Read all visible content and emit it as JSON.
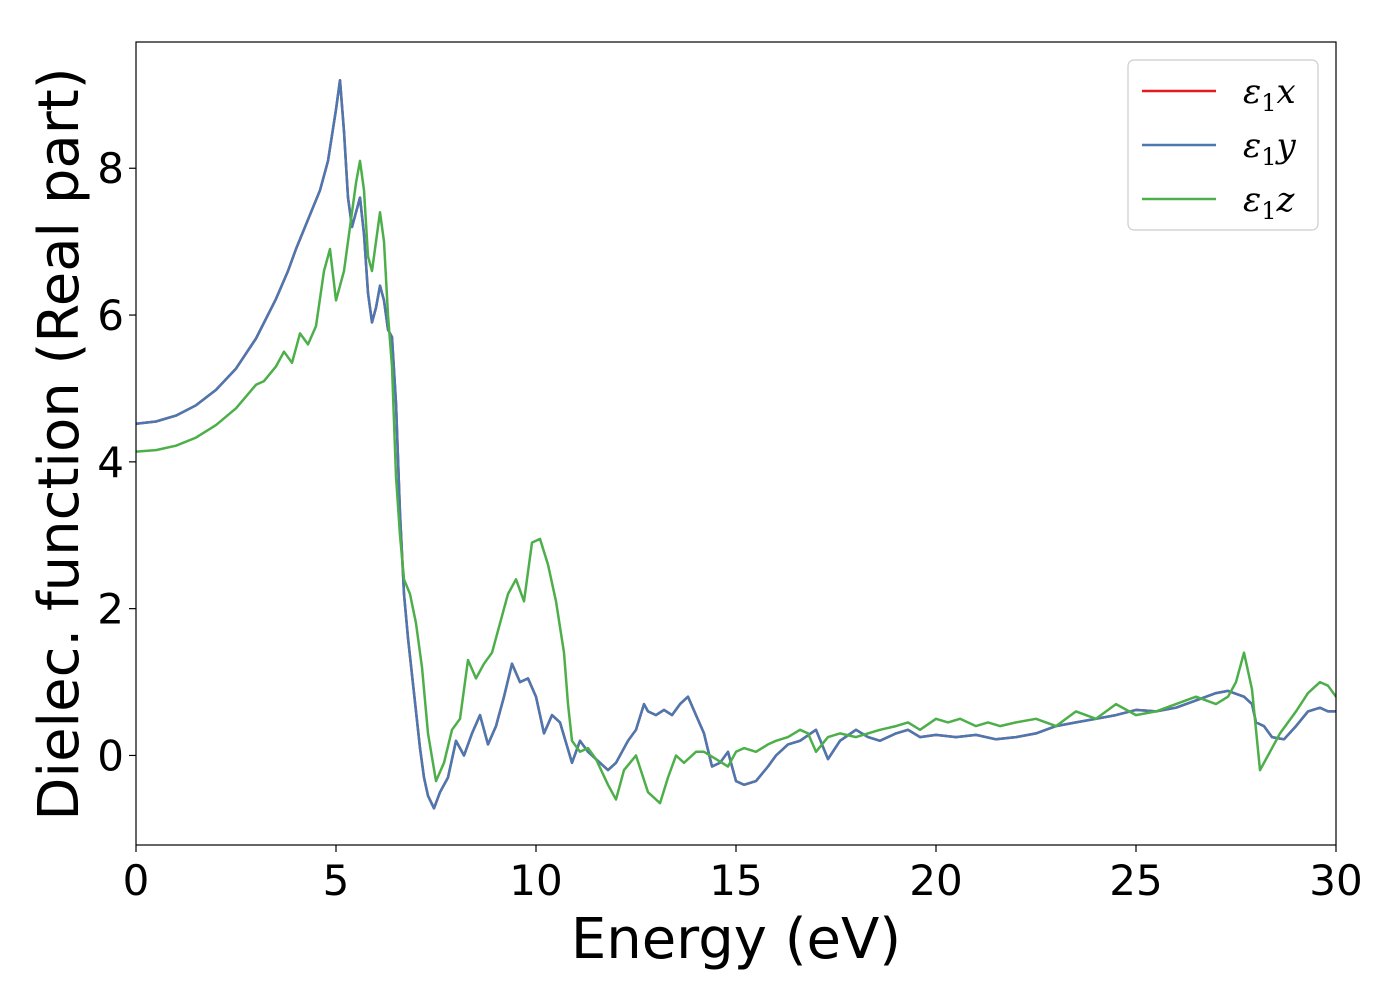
{
  "chart_data": {
    "type": "line",
    "title": "",
    "xlabel": "Energy (eV)",
    "ylabel": "Dielec. function (Real part)",
    "xlim": [
      0,
      30
    ],
    "ylim": [
      -1.22,
      9.72
    ],
    "xticks": [
      0,
      5,
      10,
      15,
      20,
      25,
      30
    ],
    "yticks": [
      0,
      2,
      4,
      6,
      8
    ],
    "grid": false,
    "legend_position": "top-right",
    "series": [
      {
        "name": "ε1x",
        "legend_symbol": "ε",
        "legend_subscript": "1",
        "legend_suffix": "x",
        "color": "#e41a1c",
        "x": [
          0,
          0.5,
          1,
          1.5,
          2,
          2.5,
          3,
          3.5,
          3.8,
          4.0,
          4.3,
          4.6,
          4.8,
          5.0,
          5.1,
          5.2,
          5.3,
          5.4,
          5.5,
          5.6,
          5.7,
          5.8,
          5.9,
          6.0,
          6.1,
          6.2,
          6.3,
          6.4,
          6.5,
          6.6,
          6.7,
          6.8,
          6.9,
          7.0,
          7.1,
          7.2,
          7.3,
          7.45,
          7.6,
          7.8,
          8.0,
          8.2,
          8.4,
          8.6,
          8.8,
          9.0,
          9.2,
          9.4,
          9.6,
          9.8,
          10.0,
          10.2,
          10.4,
          10.6,
          10.9,
          11.1,
          11.3,
          11.6,
          11.8,
          12.0,
          12.3,
          12.5,
          12.7,
          12.8,
          13.0,
          13.2,
          13.4,
          13.6,
          13.8,
          14.0,
          14.2,
          14.4,
          14.6,
          14.8,
          15.0,
          15.2,
          15.5,
          15.8,
          16.0,
          16.3,
          16.6,
          17.0,
          17.3,
          17.6,
          18.0,
          18.3,
          18.6,
          19.0,
          19.3,
          19.6,
          20.0,
          20.5,
          21.0,
          21.5,
          22.0,
          22.5,
          23.0,
          23.5,
          24.0,
          24.5,
          25.0,
          25.5,
          26.0,
          26.5,
          27.0,
          27.3,
          27.7,
          27.9,
          28.0,
          28.2,
          28.4,
          28.7,
          29.0,
          29.3,
          29.6,
          29.8,
          30.0
        ],
        "y": [
          4.52,
          4.55,
          4.63,
          4.77,
          4.98,
          5.27,
          5.68,
          6.22,
          6.6,
          6.9,
          7.3,
          7.7,
          8.1,
          8.8,
          9.2,
          8.5,
          7.6,
          7.2,
          7.4,
          7.6,
          7.1,
          6.3,
          5.9,
          6.1,
          6.4,
          6.2,
          5.8,
          5.7,
          4.8,
          3.3,
          2.2,
          1.6,
          1.1,
          0.6,
          0.1,
          -0.3,
          -0.55,
          -0.72,
          -0.5,
          -0.3,
          0.2,
          0.0,
          0.3,
          0.55,
          0.15,
          0.4,
          0.8,
          1.25,
          1.0,
          1.05,
          0.8,
          0.3,
          0.55,
          0.45,
          -0.1,
          0.2,
          0.05,
          -0.1,
          -0.2,
          -0.1,
          0.2,
          0.35,
          0.7,
          0.6,
          0.55,
          0.62,
          0.55,
          0.7,
          0.8,
          0.55,
          0.3,
          -0.15,
          -0.1,
          0.05,
          -0.35,
          -0.4,
          -0.35,
          -0.15,
          0.0,
          0.15,
          0.2,
          0.35,
          -0.05,
          0.2,
          0.35,
          0.25,
          0.2,
          0.3,
          0.35,
          0.25,
          0.28,
          0.25,
          0.28,
          0.22,
          0.25,
          0.3,
          0.4,
          0.45,
          0.5,
          0.55,
          0.62,
          0.6,
          0.65,
          0.75,
          0.85,
          0.88,
          0.8,
          0.7,
          0.45,
          0.4,
          0.25,
          0.22,
          0.4,
          0.6,
          0.65,
          0.6,
          0.6
        ]
      },
      {
        "name": "ε1y",
        "legend_symbol": "ε",
        "legend_subscript": "1",
        "legend_suffix": "y",
        "color": "#4a78b0",
        "x": [
          0,
          0.5,
          1,
          1.5,
          2,
          2.5,
          3,
          3.5,
          3.8,
          4.0,
          4.3,
          4.6,
          4.8,
          5.0,
          5.1,
          5.2,
          5.3,
          5.4,
          5.5,
          5.6,
          5.7,
          5.8,
          5.9,
          6.0,
          6.1,
          6.2,
          6.3,
          6.4,
          6.5,
          6.6,
          6.7,
          6.8,
          6.9,
          7.0,
          7.1,
          7.2,
          7.3,
          7.45,
          7.6,
          7.8,
          8.0,
          8.2,
          8.4,
          8.6,
          8.8,
          9.0,
          9.2,
          9.4,
          9.6,
          9.8,
          10.0,
          10.2,
          10.4,
          10.6,
          10.9,
          11.1,
          11.3,
          11.6,
          11.8,
          12.0,
          12.3,
          12.5,
          12.7,
          12.8,
          13.0,
          13.2,
          13.4,
          13.6,
          13.8,
          14.0,
          14.2,
          14.4,
          14.6,
          14.8,
          15.0,
          15.2,
          15.5,
          15.8,
          16.0,
          16.3,
          16.6,
          17.0,
          17.3,
          17.6,
          18.0,
          18.3,
          18.6,
          19.0,
          19.3,
          19.6,
          20.0,
          20.5,
          21.0,
          21.5,
          22.0,
          22.5,
          23.0,
          23.5,
          24.0,
          24.5,
          25.0,
          25.5,
          26.0,
          26.5,
          27.0,
          27.3,
          27.7,
          27.9,
          28.0,
          28.2,
          28.4,
          28.7,
          29.0,
          29.3,
          29.6,
          29.8,
          30.0
        ],
        "y": [
          4.52,
          4.55,
          4.63,
          4.77,
          4.98,
          5.27,
          5.68,
          6.22,
          6.6,
          6.9,
          7.3,
          7.7,
          8.1,
          8.8,
          9.2,
          8.5,
          7.6,
          7.2,
          7.4,
          7.6,
          7.1,
          6.3,
          5.9,
          6.1,
          6.4,
          6.2,
          5.8,
          5.7,
          4.8,
          3.3,
          2.2,
          1.6,
          1.1,
          0.6,
          0.1,
          -0.3,
          -0.55,
          -0.72,
          -0.5,
          -0.3,
          0.2,
          0.0,
          0.3,
          0.55,
          0.15,
          0.4,
          0.8,
          1.25,
          1.0,
          1.05,
          0.8,
          0.3,
          0.55,
          0.45,
          -0.1,
          0.2,
          0.05,
          -0.1,
          -0.2,
          -0.1,
          0.2,
          0.35,
          0.7,
          0.6,
          0.55,
          0.62,
          0.55,
          0.7,
          0.8,
          0.55,
          0.3,
          -0.15,
          -0.1,
          0.05,
          -0.35,
          -0.4,
          -0.35,
          -0.15,
          0.0,
          0.15,
          0.2,
          0.35,
          -0.05,
          0.2,
          0.35,
          0.25,
          0.2,
          0.3,
          0.35,
          0.25,
          0.28,
          0.25,
          0.28,
          0.22,
          0.25,
          0.3,
          0.4,
          0.45,
          0.5,
          0.55,
          0.62,
          0.6,
          0.65,
          0.75,
          0.85,
          0.88,
          0.8,
          0.7,
          0.45,
          0.4,
          0.25,
          0.22,
          0.4,
          0.6,
          0.65,
          0.6,
          0.6
        ]
      },
      {
        "name": "ε1z",
        "legend_symbol": "ε",
        "legend_subscript": "1",
        "legend_suffix": "z",
        "color": "#4daf4a",
        "x": [
          0,
          0.5,
          1,
          1.5,
          2,
          2.5,
          3,
          3.2,
          3.5,
          3.7,
          3.9,
          4.1,
          4.3,
          4.5,
          4.7,
          4.85,
          5.0,
          5.1,
          5.2,
          5.3,
          5.4,
          5.5,
          5.6,
          5.7,
          5.8,
          5.9,
          6.0,
          6.1,
          6.2,
          6.3,
          6.4,
          6.5,
          6.6,
          6.7,
          6.85,
          7.0,
          7.15,
          7.3,
          7.5,
          7.7,
          7.9,
          8.1,
          8.3,
          8.5,
          8.7,
          8.9,
          9.1,
          9.3,
          9.5,
          9.7,
          9.9,
          10.1,
          10.3,
          10.5,
          10.7,
          10.8,
          10.9,
          11.1,
          11.3,
          11.5,
          11.8,
          12.0,
          12.2,
          12.5,
          12.8,
          13.1,
          13.3,
          13.5,
          13.7,
          14.0,
          14.2,
          14.5,
          14.8,
          15.0,
          15.2,
          15.5,
          15.8,
          16.0,
          16.3,
          16.6,
          16.8,
          17.0,
          17.3,
          17.6,
          18.0,
          18.3,
          18.6,
          19.0,
          19.3,
          19.6,
          20.0,
          20.3,
          20.6,
          21.0,
          21.3,
          21.6,
          22.0,
          22.5,
          23.0,
          23.5,
          24.0,
          24.5,
          25.0,
          25.5,
          26.0,
          26.5,
          27.0,
          27.3,
          27.5,
          27.7,
          27.9,
          28.1,
          28.3,
          28.6,
          29.0,
          29.3,
          29.6,
          29.8,
          30.0
        ],
        "y": [
          4.14,
          4.16,
          4.22,
          4.33,
          4.5,
          4.73,
          5.05,
          5.1,
          5.3,
          5.5,
          5.35,
          5.75,
          5.6,
          5.85,
          6.6,
          6.9,
          6.2,
          6.4,
          6.6,
          7.0,
          7.4,
          7.8,
          8.1,
          7.7,
          6.8,
          6.6,
          7.0,
          7.4,
          7.0,
          6.0,
          5.3,
          3.8,
          3.0,
          2.4,
          2.2,
          1.8,
          1.2,
          0.3,
          -0.35,
          -0.1,
          0.35,
          0.5,
          1.3,
          1.05,
          1.25,
          1.4,
          1.8,
          2.2,
          2.4,
          2.1,
          2.9,
          2.95,
          2.6,
          2.1,
          1.4,
          0.7,
          0.2,
          0.05,
          0.1,
          -0.05,
          -0.4,
          -0.6,
          -0.2,
          0.0,
          -0.5,
          -0.65,
          -0.3,
          0.0,
          -0.1,
          0.05,
          0.05,
          -0.05,
          -0.15,
          0.05,
          0.1,
          0.05,
          0.15,
          0.2,
          0.25,
          0.35,
          0.3,
          0.05,
          0.25,
          0.3,
          0.25,
          0.3,
          0.35,
          0.4,
          0.45,
          0.35,
          0.5,
          0.45,
          0.5,
          0.4,
          0.45,
          0.4,
          0.45,
          0.5,
          0.4,
          0.6,
          0.5,
          0.7,
          0.55,
          0.6,
          0.7,
          0.8,
          0.7,
          0.8,
          1.0,
          1.4,
          0.9,
          -0.2,
          0.0,
          0.3,
          0.6,
          0.85,
          1.0,
          0.95,
          0.8
        ]
      }
    ]
  }
}
